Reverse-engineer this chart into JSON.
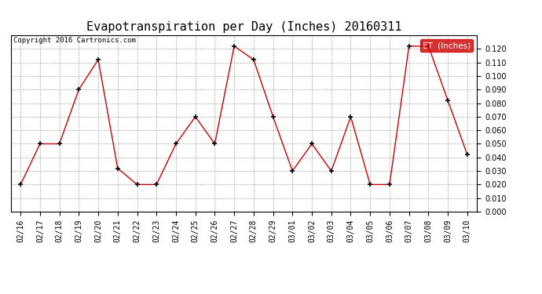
{
  "title": "Evapotranspiration per Day (Inches) 20160311",
  "copyright": "Copyright 2016 Cartronics.com",
  "legend_label": "ET  (Inches)",
  "dates": [
    "02/16",
    "02/17",
    "02/18",
    "02/19",
    "02/20",
    "02/21",
    "02/22",
    "02/23",
    "02/24",
    "02/25",
    "02/26",
    "02/27",
    "02/28",
    "02/29",
    "03/01",
    "03/02",
    "03/03",
    "03/04",
    "03/05",
    "03/06",
    "03/07",
    "03/08",
    "03/09",
    "03/10"
  ],
  "values": [
    0.02,
    0.05,
    0.05,
    0.09,
    0.112,
    0.032,
    0.02,
    0.02,
    0.05,
    0.07,
    0.05,
    0.122,
    0.112,
    0.07,
    0.03,
    0.05,
    0.03,
    0.07,
    0.02,
    0.02,
    0.122,
    0.122,
    0.082,
    0.042
  ],
  "line_color": "#cc0000",
  "marker_color": "#000000",
  "background_color": "#ffffff",
  "grid_color": "#aaaaaa",
  "ylim": [
    0.0,
    0.13
  ],
  "yticks": [
    0.0,
    0.01,
    0.02,
    0.03,
    0.04,
    0.05,
    0.06,
    0.07,
    0.08,
    0.09,
    0.1,
    0.11,
    0.12
  ],
  "title_fontsize": 11,
  "copyright_fontsize": 6.5,
  "tick_fontsize": 7,
  "legend_fontsize": 7.5,
  "legend_bg": "#cc0000",
  "legend_text_color": "#ffffff"
}
